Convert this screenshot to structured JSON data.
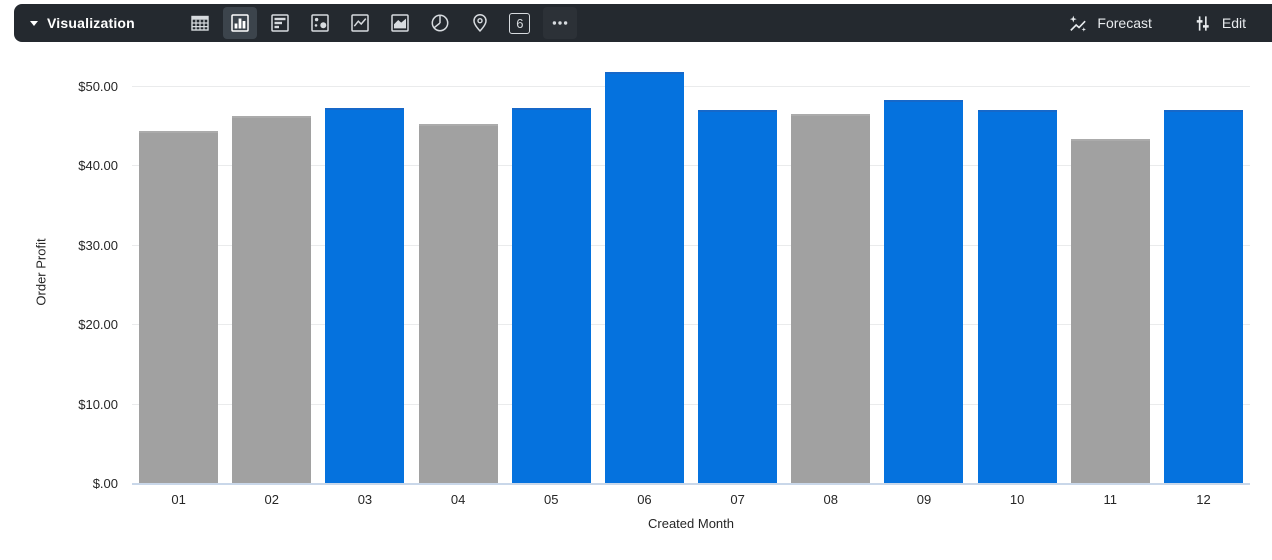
{
  "toolbar": {
    "title": "Visualization",
    "chart_type_icons": [
      "table",
      "column-chart",
      "horizontal-bar-chart",
      "scatter-plot",
      "line-chart",
      "area-chart",
      "pie-chart",
      "map",
      "single-value",
      "more-options"
    ],
    "selected_chart_type": "column-chart",
    "single_value_glyph": "6",
    "forecast_label": "Forecast",
    "edit_label": "Edit"
  },
  "colors": {
    "toolbar_bg": "#24292F",
    "selected_icon_bg": "#3C444C",
    "icon_stroke": "#D7DBDF",
    "bar_blue": "#0572DE",
    "bar_blue_edge": "#1668C9",
    "bar_gray": "#A1A1A1",
    "bar_gray_edge": "#ABABAB",
    "gridline": "#EAEBEC",
    "axis_line": "#C9D7E9",
    "label_text": "#262626"
  },
  "chart_data": {
    "type": "bar",
    "title": "",
    "xlabel": "Created Month",
    "ylabel": "Order Profit",
    "categories": [
      "01",
      "02",
      "03",
      "04",
      "05",
      "06",
      "07",
      "08",
      "09",
      "10",
      "11",
      "12"
    ],
    "values": [
      44.5,
      46.3,
      47.3,
      45.4,
      47.3,
      51.9,
      47.1,
      46.6,
      48.4,
      47.1,
      43.5,
      47.1
    ],
    "bar_colors": [
      "gray",
      "gray",
      "blue",
      "gray",
      "blue",
      "blue",
      "blue",
      "gray",
      "blue",
      "blue",
      "gray",
      "blue"
    ],
    "y_ticks": [
      {
        "value": 0,
        "label": "$.00"
      },
      {
        "value": 10,
        "label": "$10.00"
      },
      {
        "value": 20,
        "label": "$20.00"
      },
      {
        "value": 30,
        "label": "$30.00"
      },
      {
        "value": 40,
        "label": "$40.00"
      },
      {
        "value": 50,
        "label": "$50.00"
      }
    ],
    "ylim": [
      0,
      54
    ],
    "grid": true,
    "legend": "none"
  }
}
